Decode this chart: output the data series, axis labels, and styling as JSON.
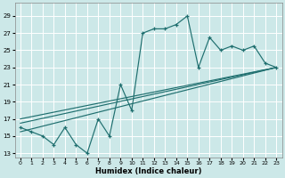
{
  "bg_color": "#cce8e8",
  "grid_color": "#ffffff",
  "line_color": "#1f6f6f",
  "xlabel": "Humidex (Indice chaleur)",
  "xlim": [
    -0.5,
    23.5
  ],
  "ylim": [
    12.5,
    30.5
  ],
  "xticks": [
    0,
    1,
    2,
    3,
    4,
    5,
    6,
    7,
    8,
    9,
    10,
    11,
    12,
    13,
    14,
    15,
    16,
    17,
    18,
    19,
    20,
    21,
    22,
    23
  ],
  "yticks": [
    13,
    15,
    17,
    19,
    21,
    23,
    25,
    27,
    29
  ],
  "main_x": [
    0,
    1,
    2,
    3,
    4,
    5,
    6,
    7,
    8,
    9,
    10,
    11,
    12,
    13,
    14,
    15,
    16,
    17,
    18,
    19,
    20,
    21,
    22,
    23
  ],
  "main_y": [
    16,
    15.5,
    15,
    14,
    16,
    14,
    13,
    17,
    15,
    21,
    18,
    27,
    27.5,
    27.5,
    28,
    29,
    23,
    26.5,
    25,
    25.5,
    25,
    25.5,
    23.5,
    23
  ],
  "trend1_x": [
    0,
    23
  ],
  "trend1_y": [
    15.5,
    23
  ],
  "trend2_x": [
    0,
    23
  ],
  "trend2_y": [
    16.5,
    23
  ],
  "trend3_x": [
    0,
    23
  ],
  "trend3_y": [
    17.0,
    23
  ]
}
